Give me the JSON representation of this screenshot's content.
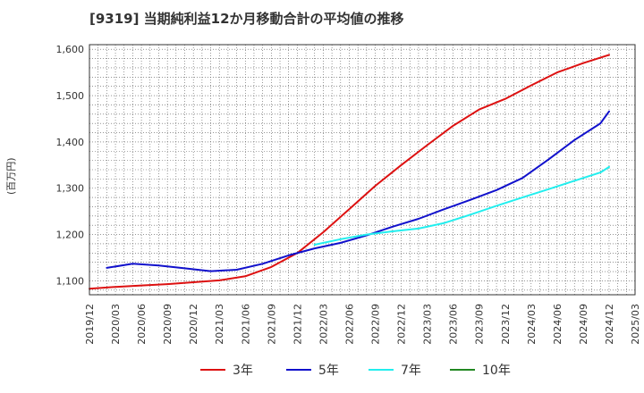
{
  "title": "[9319]  当期純利益12か月移動合計の平均値の推移",
  "chart_data": {
    "type": "line",
    "title": "[9319]  当期純利益12か月移動合計の平均値の推移",
    "xlabel": "",
    "ylabel": "(百万円)",
    "ylim": [
      1070,
      1610
    ],
    "yticks": [
      1100,
      1200,
      1300,
      1400,
      1500,
      1600
    ],
    "ytick_labels": [
      "1,100",
      "1,200",
      "1,300",
      "1,400",
      "1,500",
      "1,600"
    ],
    "xtick_labels": [
      "2019/12",
      "2020/03",
      "2020/06",
      "2020/09",
      "2020/12",
      "2021/03",
      "2021/06",
      "2021/09",
      "2021/12",
      "2022/03",
      "2022/06",
      "2022/09",
      "2022/12",
      "2023/03",
      "2023/06",
      "2023/09",
      "2023/12",
      "2024/03",
      "2024/06",
      "2024/09",
      "2024/12",
      "2025/03"
    ],
    "grid": true,
    "legend_position": "bottom",
    "series": [
      {
        "name": "3年",
        "color": "#dd1111",
        "points": [
          [
            "2019/12",
            1083
          ],
          [
            "2020/03",
            1087
          ],
          [
            "2020/06",
            1090
          ],
          [
            "2020/09",
            1093
          ],
          [
            "2020/12",
            1097
          ],
          [
            "2021/03",
            1101
          ],
          [
            "2021/06",
            1110
          ],
          [
            "2021/09",
            1130
          ],
          [
            "2021/12",
            1160
          ],
          [
            "2022/03",
            1205
          ],
          [
            "2022/06",
            1255
          ],
          [
            "2022/09",
            1305
          ],
          [
            "2022/12",
            1350
          ],
          [
            "2023/03",
            1393
          ],
          [
            "2023/06",
            1435
          ],
          [
            "2023/09",
            1470
          ],
          [
            "2023/12",
            1493
          ],
          [
            "2024/03",
            1522
          ],
          [
            "2024/06",
            1550
          ],
          [
            "2024/09",
            1570
          ],
          [
            "2024/12",
            1588
          ]
        ]
      },
      {
        "name": "5年",
        "color": "#1111cc",
        "points": [
          [
            "2020/02",
            1128
          ],
          [
            "2020/05",
            1137
          ],
          [
            "2020/08",
            1133
          ],
          [
            "2020/11",
            1127
          ],
          [
            "2021/02",
            1121
          ],
          [
            "2021/05",
            1124
          ],
          [
            "2021/08",
            1137
          ],
          [
            "2021/11",
            1155
          ],
          [
            "2022/02",
            1170
          ],
          [
            "2022/05",
            1182
          ],
          [
            "2022/08",
            1198
          ],
          [
            "2022/11",
            1217
          ],
          [
            "2023/02",
            1234
          ],
          [
            "2023/05",
            1255
          ],
          [
            "2023/08",
            1275
          ],
          [
            "2023/11",
            1296
          ],
          [
            "2024/02",
            1322
          ],
          [
            "2024/05",
            1362
          ],
          [
            "2024/08",
            1404
          ],
          [
            "2024/11",
            1440
          ],
          [
            "2024/12",
            1466
          ]
        ]
      },
      {
        "name": "7年",
        "color": "#22eeee",
        "points": [
          [
            "2022/02",
            1178
          ],
          [
            "2022/05",
            1190
          ],
          [
            "2022/08",
            1200
          ],
          [
            "2022/11",
            1207
          ],
          [
            "2023/02",
            1213
          ],
          [
            "2023/05",
            1225
          ],
          [
            "2023/08",
            1243
          ],
          [
            "2023/11",
            1262
          ],
          [
            "2024/02",
            1280
          ],
          [
            "2024/05",
            1298
          ],
          [
            "2024/08",
            1316
          ],
          [
            "2024/11",
            1334
          ],
          [
            "2024/12",
            1346
          ]
        ]
      },
      {
        "name": "10年",
        "color": "#228822",
        "points": []
      }
    ]
  }
}
